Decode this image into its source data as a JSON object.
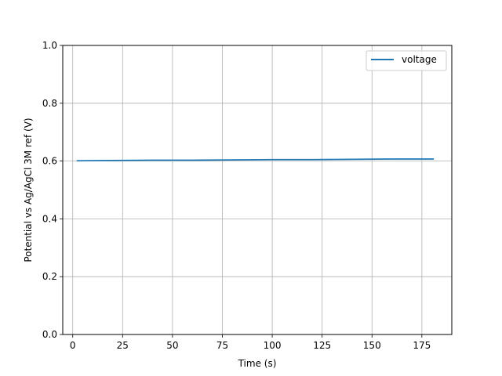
{
  "chart_data": {
    "type": "line",
    "title": "",
    "xlabel": "Time (s)",
    "ylabel": "Potential vs Ag/AgCl 3M ref (V)",
    "xlim": [
      -5,
      190
    ],
    "ylim": [
      0.0,
      1.0
    ],
    "xticks": [
      0,
      25,
      50,
      75,
      100,
      125,
      150,
      175
    ],
    "yticks": [
      0.0,
      0.2,
      0.4,
      0.6,
      0.8,
      1.0
    ],
    "xtick_labels": [
      "0",
      "25",
      "50",
      "75",
      "100",
      "125",
      "150",
      "175"
    ],
    "ytick_labels": [
      "0.0",
      "0.2",
      "0.4",
      "0.6",
      "0.8",
      "1.0"
    ],
    "grid": true,
    "legend_position": "top-right",
    "series": [
      {
        "name": "voltage",
        "color": "#1f77b4",
        "x": [
          2,
          20,
          40,
          60,
          80,
          100,
          120,
          140,
          160,
          181
        ],
        "y": [
          0.601,
          0.602,
          0.603,
          0.603,
          0.604,
          0.605,
          0.605,
          0.606,
          0.607,
          0.607
        ]
      }
    ]
  }
}
